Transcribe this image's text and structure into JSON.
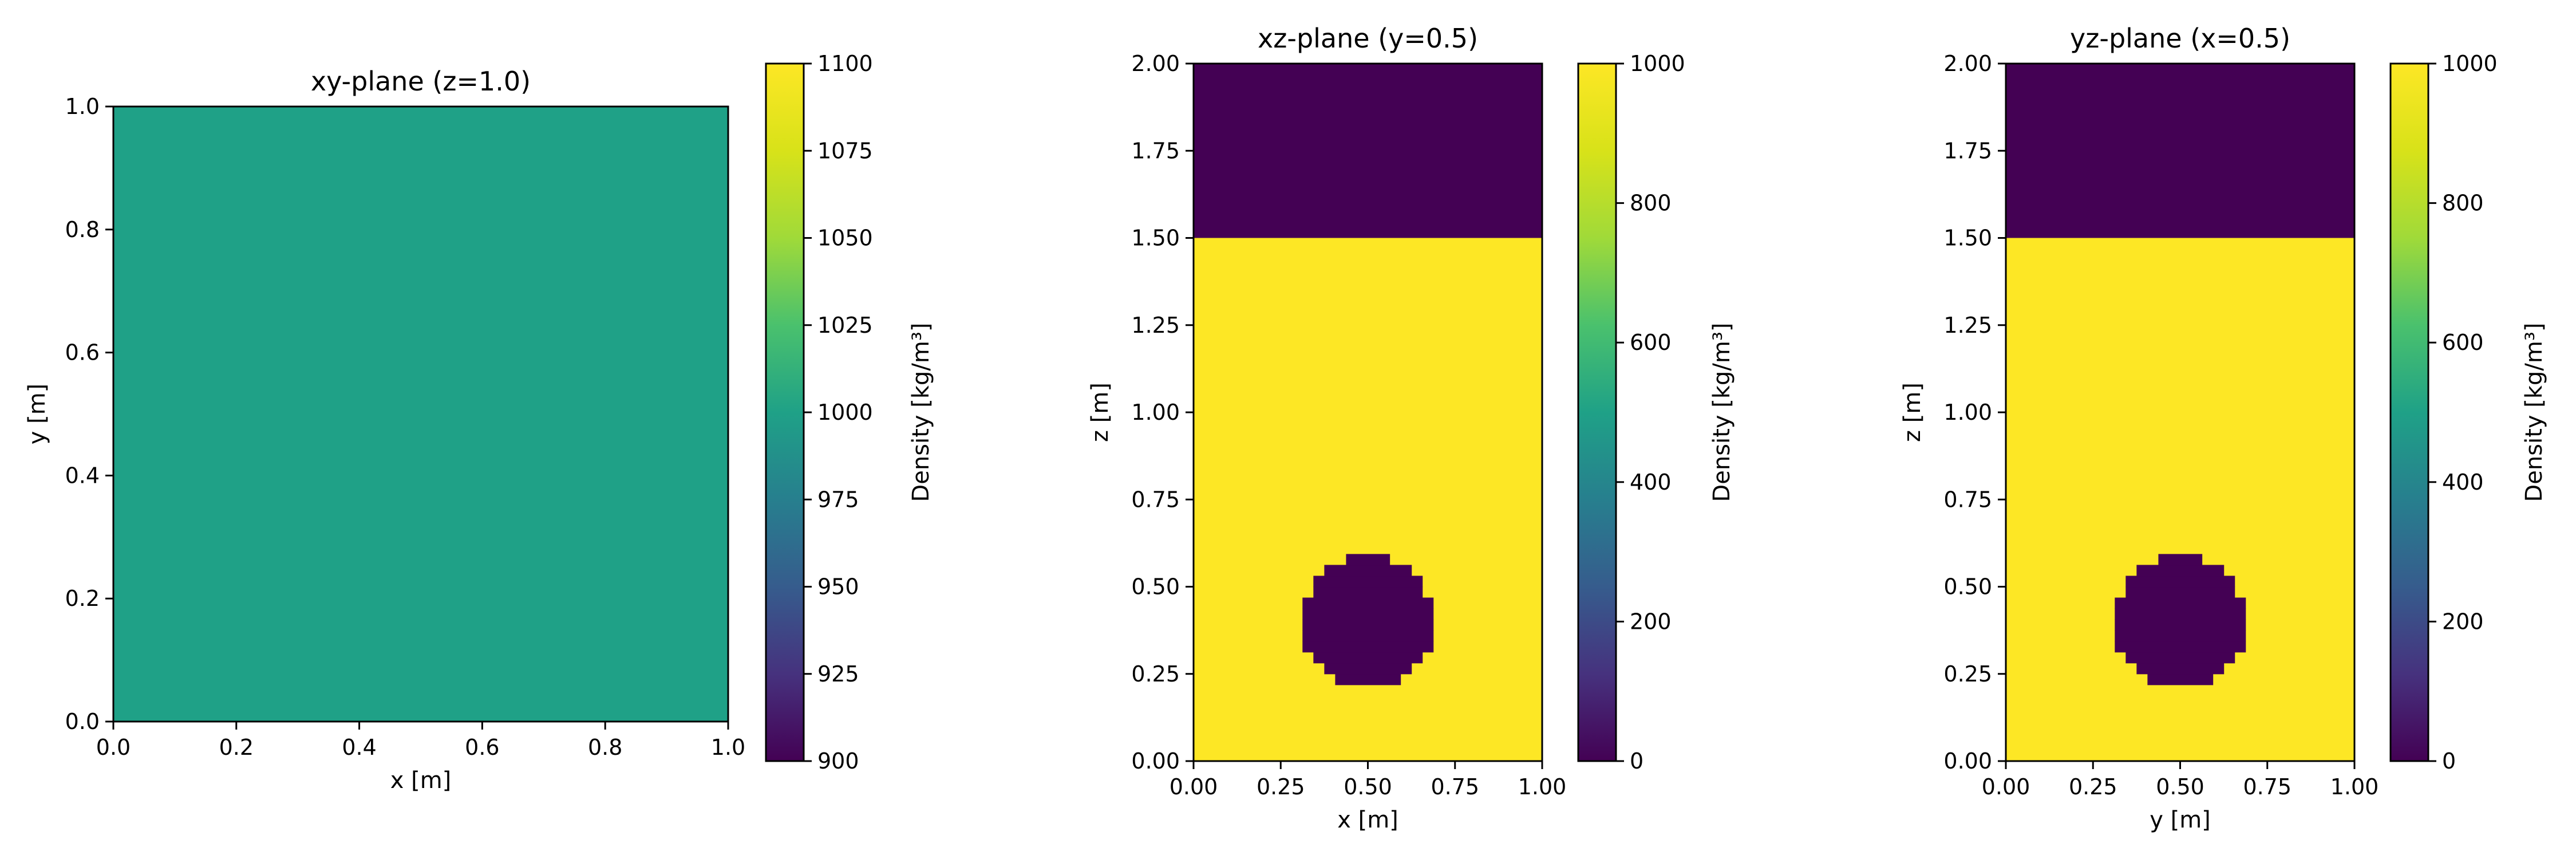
{
  "chart_data": [
    {
      "type": "heatmap",
      "title": "xy-plane (z=1.0)",
      "xlabel": "x [m]",
      "ylabel": "y [m]",
      "xlim": [
        0.0,
        1.0
      ],
      "ylim": [
        0.0,
        1.0
      ],
      "xticks": [
        "0.0",
        "0.2",
        "0.4",
        "0.6",
        "0.8",
        "1.0"
      ],
      "yticks": [
        "0.0",
        "0.2",
        "0.4",
        "0.6",
        "0.8",
        "1.0"
      ],
      "field": {
        "uniform_value": 1000
      },
      "colorbar": {
        "label": "Density [kg/m³]",
        "range": [
          900,
          1100
        ],
        "ticks": [
          "900",
          "925",
          "950",
          "975",
          "1000",
          "1025",
          "1050",
          "1075",
          "1100"
        ]
      },
      "colormap": "viridis"
    },
    {
      "type": "heatmap",
      "title": "xz-plane (y=0.5)",
      "xlabel": "x [m]",
      "ylabel": "z [m]",
      "xlim": [
        0.0,
        1.0
      ],
      "ylim": [
        0.0,
        2.0
      ],
      "xticks": [
        "0.00",
        "0.25",
        "0.50",
        "0.75",
        "1.00"
      ],
      "yticks": [
        "0.00",
        "0.25",
        "0.50",
        "0.75",
        "1.00",
        "1.25",
        "1.50",
        "1.75",
        "2.00"
      ],
      "field": {
        "background_value": 1000,
        "layers": [
          {
            "from": 1.5,
            "to": 2.0,
            "value": 0
          }
        ],
        "bubble": {
          "center": [
            0.5,
            0.4
          ],
          "radius": 0.19,
          "value": 0
        }
      },
      "colorbar": {
        "label": "Density [kg/m³]",
        "range": [
          0,
          1000
        ],
        "ticks": [
          "0",
          "200",
          "400",
          "600",
          "800",
          "1000"
        ]
      },
      "colormap": "viridis"
    },
    {
      "type": "heatmap",
      "title": "yz-plane (x=0.5)",
      "xlabel": "y [m]",
      "ylabel": "z [m]",
      "xlim": [
        0.0,
        1.0
      ],
      "ylim": [
        0.0,
        2.0
      ],
      "xticks": [
        "0.00",
        "0.25",
        "0.50",
        "0.75",
        "1.00"
      ],
      "yticks": [
        "0.00",
        "0.25",
        "0.50",
        "0.75",
        "1.00",
        "1.25",
        "1.50",
        "1.75",
        "2.00"
      ],
      "field": {
        "background_value": 1000,
        "layers": [
          {
            "from": 1.5,
            "to": 2.0,
            "value": 0
          }
        ],
        "bubble": {
          "center": [
            0.5,
            0.4
          ],
          "radius": 0.19,
          "value": 0
        }
      },
      "colorbar": {
        "label": "Density [kg/m³]",
        "range": [
          0,
          1000
        ],
        "ticks": [
          "0",
          "200",
          "400",
          "600",
          "800",
          "1000"
        ]
      },
      "colormap": "viridis"
    }
  ]
}
